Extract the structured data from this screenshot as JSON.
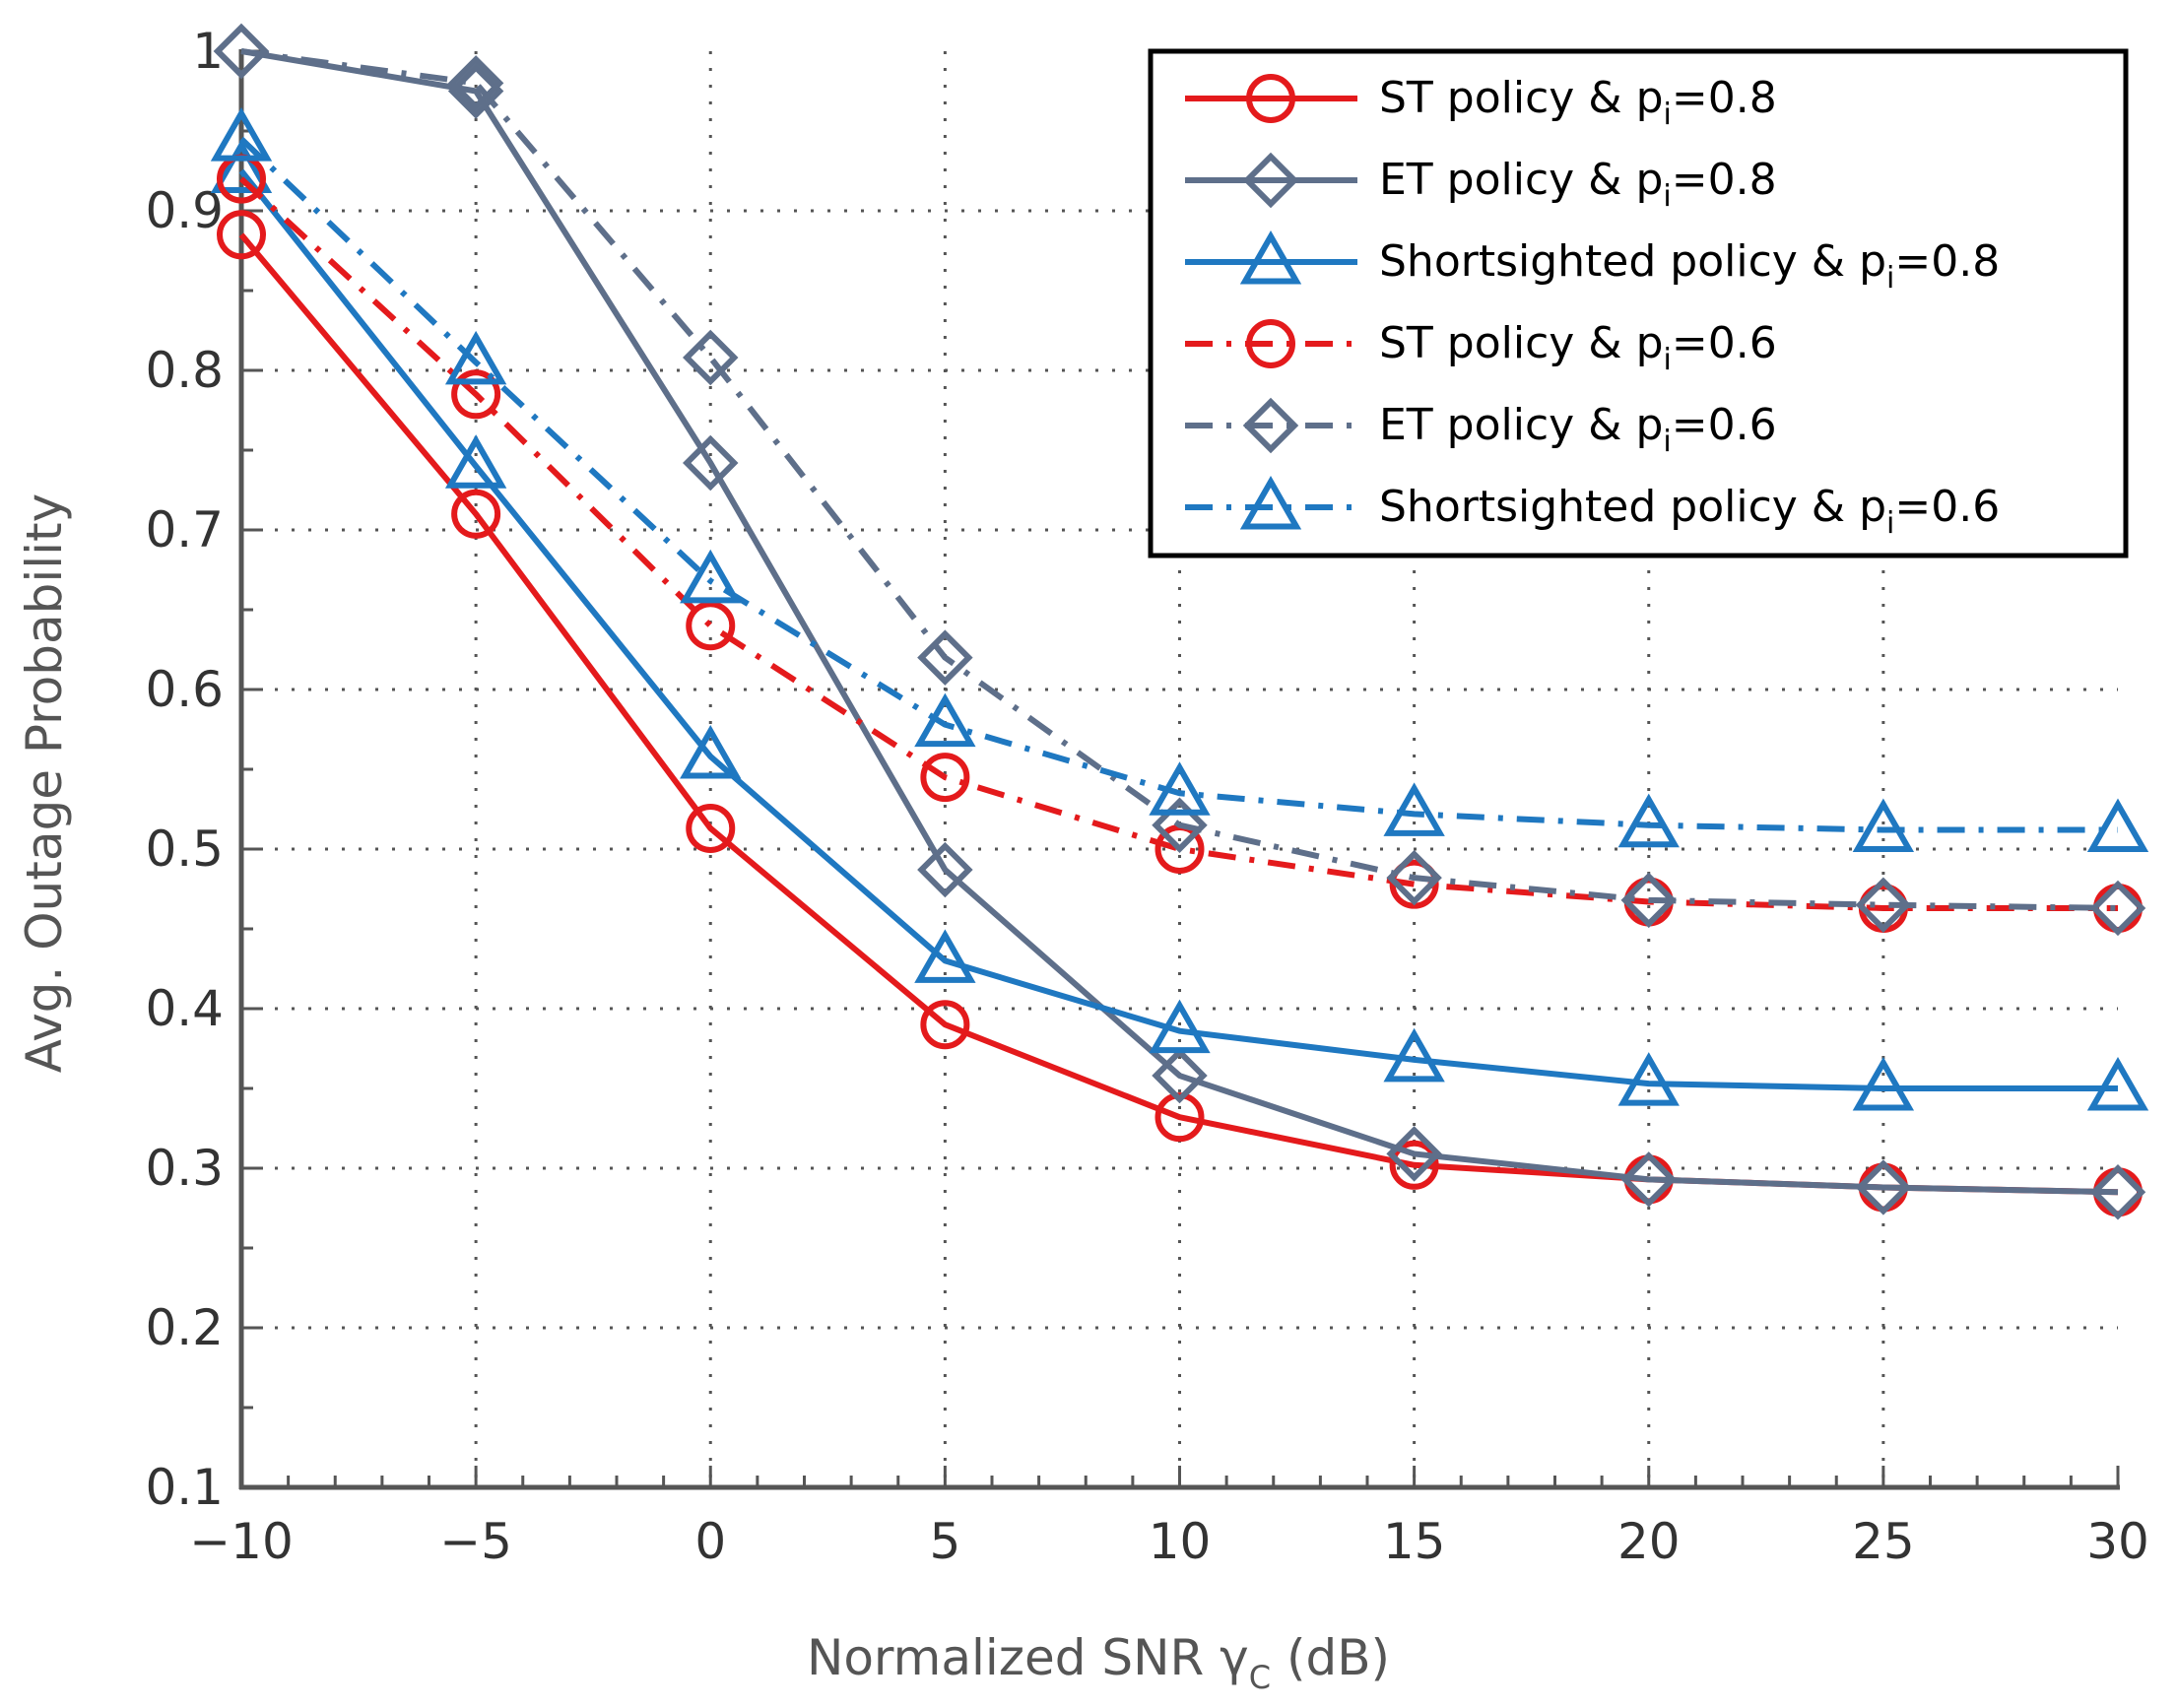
{
  "chart_data": {
    "type": "line",
    "title": "",
    "xlabel": "Normalized SNR γ",
    "xlabel_sub": "C",
    "xlabel_suffix": " (dB)",
    "ylabel": "Avg. Outage Probability",
    "xlim": [
      -10,
      30
    ],
    "ylim": [
      0.1,
      1.0
    ],
    "xticks": [
      -10,
      -5,
      0,
      5,
      10,
      15,
      20,
      25,
      30
    ],
    "xtick_labels": [
      "−10",
      "−5",
      "0",
      "5",
      "10",
      "15",
      "20",
      "25",
      "30"
    ],
    "yticks": [
      0.1,
      0.2,
      0.3,
      0.4,
      0.5,
      0.6,
      0.7,
      0.8,
      0.9,
      1
    ],
    "ytick_labels": [
      "0.1",
      "0.2",
      "0.3",
      "0.4",
      "0.5",
      "0.6",
      "0.7",
      "0.8",
      "0.9",
      "1"
    ],
    "grid": true,
    "legend_position": "top-right",
    "x": [
      -10,
      -5,
      0,
      5,
      10,
      15,
      20,
      25,
      30
    ],
    "series": [
      {
        "name": "ST policy & p_i=0.8",
        "legend_main": "ST policy & p",
        "legend_sub": "i",
        "legend_tail": "=0.8",
        "color": "#e41a1c",
        "dash": "solid",
        "marker": "circle",
        "values": [
          0.885,
          0.71,
          0.513,
          0.39,
          0.332,
          0.302,
          0.293,
          0.288,
          0.285
        ]
      },
      {
        "name": "ET policy & p_i=0.8",
        "legend_main": "ET policy & p",
        "legend_sub": "i",
        "legend_tail": "=0.8",
        "color": "#5e6f8a",
        "dash": "solid",
        "marker": "diamond",
        "values": [
          1.0,
          0.975,
          0.742,
          0.487,
          0.358,
          0.309,
          0.293,
          0.288,
          0.285
        ]
      },
      {
        "name": "Shortsighted policy & p_i=0.8",
        "legend_main": "Shortsighted policy & p",
        "legend_sub": "i",
        "legend_tail": "=0.8",
        "color": "#1f78c1",
        "dash": "solid",
        "marker": "triangle",
        "values": [
          0.925,
          0.74,
          0.558,
          0.43,
          0.386,
          0.368,
          0.353,
          0.35,
          0.35
        ]
      },
      {
        "name": "ST policy & p_i=0.6",
        "legend_main": "ST policy & p",
        "legend_sub": "i",
        "legend_tail": "=0.6",
        "color": "#e41a1c",
        "dash": "dashdot",
        "marker": "circle",
        "values": [
          0.92,
          0.785,
          0.64,
          0.545,
          0.5,
          0.478,
          0.467,
          0.463,
          0.463
        ]
      },
      {
        "name": "ET policy & p_i=0.6",
        "legend_main": "ET policy & p",
        "legend_sub": "i",
        "legend_tail": "=0.6",
        "color": "#5e6f8a",
        "dash": "dashdot",
        "marker": "diamond",
        "values": [
          1.0,
          0.98,
          0.808,
          0.62,
          0.515,
          0.482,
          0.468,
          0.465,
          0.463
        ]
      },
      {
        "name": "Shortsighted policy & p_i=0.6",
        "legend_main": "Shortsighted policy & p",
        "legend_sub": "i",
        "legend_tail": "=0.6",
        "color": "#1f78c1",
        "dash": "dashdot",
        "marker": "triangle",
        "values": [
          0.945,
          0.805,
          0.668,
          0.578,
          0.535,
          0.522,
          0.515,
          0.512,
          0.512
        ]
      }
    ]
  }
}
